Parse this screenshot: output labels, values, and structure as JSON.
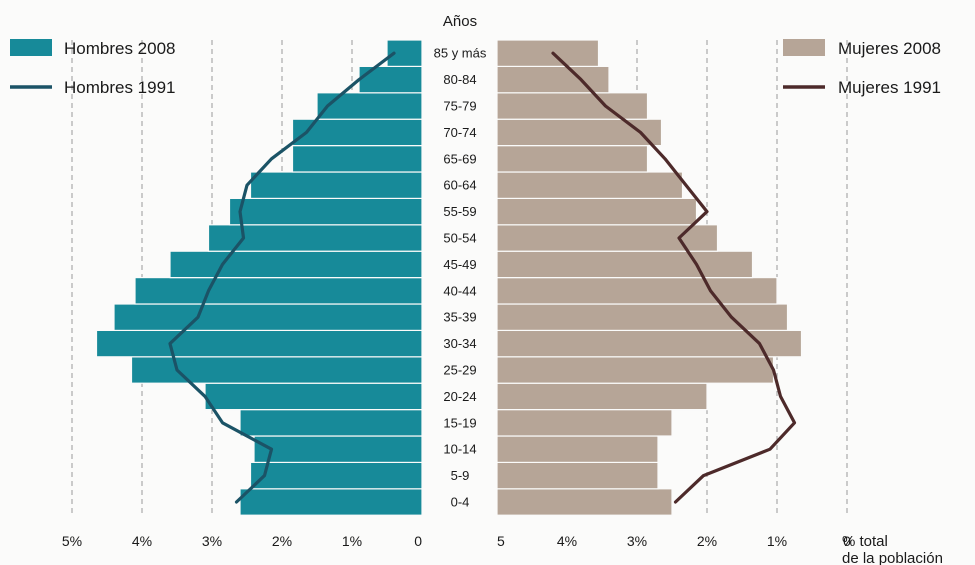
{
  "chart_data": {
    "type": "bar",
    "axis_title": "Años",
    "age_groups": [
      "0-4",
      "5-9",
      "10-14",
      "15-19",
      "20-24",
      "25-29",
      "30-34",
      "35-39",
      "40-44",
      "45-49",
      "50-54",
      "55-59",
      "60-64",
      "65-69",
      "70-74",
      "75-79",
      "80-84",
      "85 y más"
    ],
    "series": [
      {
        "name": "Hombres 2008",
        "kind": "bar",
        "side": "left",
        "color": "#178a99",
        "values": [
          2.6,
          2.45,
          2.4,
          2.6,
          3.1,
          4.15,
          4.65,
          4.4,
          4.1,
          3.6,
          3.05,
          2.75,
          2.45,
          1.85,
          1.85,
          1.5,
          0.9,
          0.5
        ]
      },
      {
        "name": "Mujeres 2008",
        "kind": "bar",
        "side": "right",
        "color": "#b6a597",
        "values": [
          2.5,
          2.3,
          2.3,
          2.5,
          3.0,
          3.95,
          4.35,
          4.15,
          4.0,
          3.65,
          3.15,
          2.85,
          2.65,
          2.15,
          2.35,
          2.15,
          1.6,
          1.45
        ]
      },
      {
        "name": "Hombres 1991",
        "kind": "line",
        "side": "left",
        "color": "#1b5366",
        "values": [
          2.65,
          2.25,
          2.15,
          2.85,
          3.1,
          3.5,
          3.6,
          3.2,
          3.05,
          2.85,
          2.55,
          2.6,
          2.5,
          2.15,
          1.65,
          1.35,
          0.9,
          0.4
        ]
      },
      {
        "name": "Mujeres 1991",
        "kind": "line",
        "side": "right",
        "color": "#4d2a2a",
        "values": [
          2.55,
          2.95,
          3.9,
          4.25,
          4.05,
          3.95,
          3.75,
          3.35,
          3.05,
          2.85,
          2.6,
          3.0,
          2.7,
          2.4,
          2.05,
          1.55,
          1.2,
          0.8
        ]
      }
    ],
    "x_ticks_left": [
      "5%",
      "4%",
      "3%",
      "2%",
      "1%",
      "0"
    ],
    "x_ticks_right": [
      "0",
      "1%",
      "2%",
      "3%",
      "4%",
      "5"
    ],
    "x_tick_values": [
      5,
      4,
      3,
      2,
      1,
      0
    ],
    "x_axis_title_lines": [
      "% total",
      "de la población"
    ],
    "xlim": [
      0,
      5
    ],
    "grid": "dashed vertical",
    "legend_left_placement": "top-left",
    "legend_right_placement": "top-right"
  }
}
